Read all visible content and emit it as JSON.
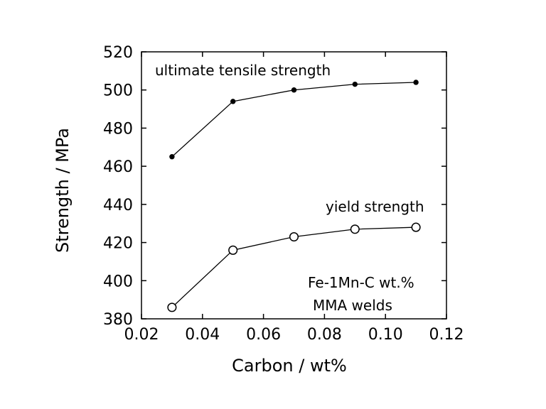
{
  "chart_data": {
    "type": "line",
    "title": "",
    "xlabel": "Carbon / wt%",
    "ylabel": "Strength / MPa",
    "xlim": [
      0.02,
      0.12
    ],
    "ylim": [
      380,
      520
    ],
    "xticks": [
      0.02,
      0.04,
      0.06,
      0.08,
      0.1,
      0.12
    ],
    "xtick_labels": [
      "0.02",
      "0.04",
      "0.06",
      "0.08",
      "0.10",
      "0.12"
    ],
    "yticks": [
      380,
      400,
      420,
      440,
      460,
      480,
      500,
      520
    ],
    "ytick_labels": [
      "380",
      "400",
      "420",
      "440",
      "460",
      "480",
      "500",
      "520"
    ],
    "grid": false,
    "series": [
      {
        "name": "ultimate tensile strength",
        "marker": "filled-circle",
        "color": "#000000",
        "x": [
          0.03,
          0.05,
          0.07,
          0.09,
          0.11
        ],
        "y": [
          465,
          494,
          500,
          503,
          504
        ]
      },
      {
        "name": "yield strength",
        "marker": "open-circle",
        "color": "#000000",
        "x": [
          0.03,
          0.05,
          0.07,
          0.09,
          0.11
        ],
        "y": [
          386,
          416,
          423,
          427,
          428
        ]
      }
    ],
    "annotations": [
      "Fe-1Mn-C wt.%",
      "MMA welds"
    ]
  }
}
